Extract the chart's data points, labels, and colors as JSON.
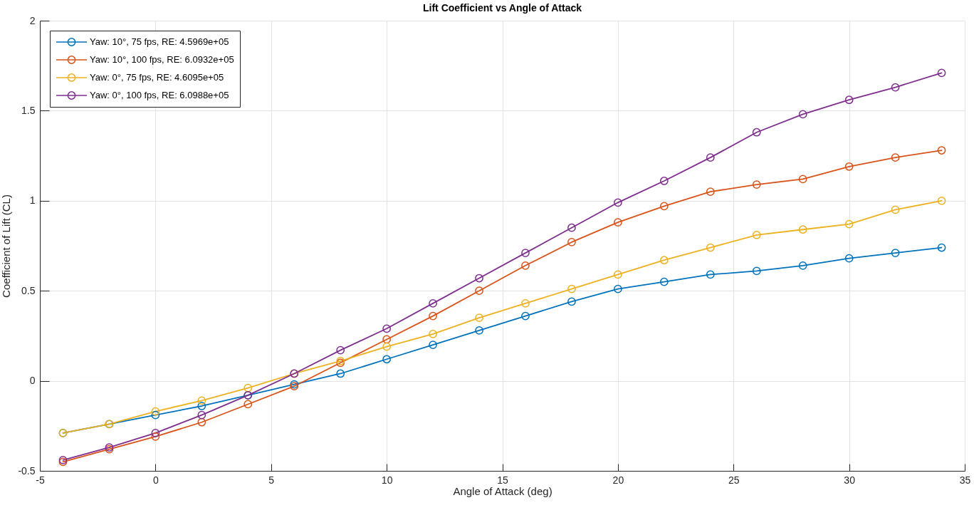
{
  "chart_data": {
    "type": "line",
    "title": "Lift Coefficient vs Angle of Attack",
    "xlabel": "Angle of Attack (deg)",
    "ylabel": "Coefficient of Lift (CL)",
    "x": [
      -4,
      -2,
      0,
      2,
      4,
      6,
      8,
      10,
      12,
      14,
      16,
      18,
      20,
      22,
      24,
      26,
      28,
      30,
      32,
      34
    ],
    "series": [
      {
        "name": "Yaw: 10°, 75 fps, RE: 4.5969e+05",
        "color": "#0072bd",
        "values": [
          -0.29,
          -0.24,
          -0.19,
          -0.14,
          -0.08,
          -0.02,
          0.04,
          0.12,
          0.2,
          0.28,
          0.36,
          0.44,
          0.51,
          0.55,
          0.59,
          0.61,
          0.64,
          0.68,
          0.71,
          0.74
        ]
      },
      {
        "name": "Yaw: 10°, 100 fps, RE: 6.0932e+05",
        "color": "#d95319",
        "values": [
          -0.45,
          -0.38,
          -0.31,
          -0.23,
          -0.13,
          -0.03,
          0.1,
          0.23,
          0.36,
          0.5,
          0.64,
          0.77,
          0.88,
          0.97,
          1.05,
          1.09,
          1.12,
          1.19,
          1.24,
          1.28
        ]
      },
      {
        "name": "Yaw: 0°, 75 fps, RE: 4.6095e+05",
        "color": "#edb120",
        "values": [
          -0.29,
          -0.24,
          -0.17,
          -0.11,
          -0.04,
          0.04,
          0.11,
          0.19,
          0.26,
          0.35,
          0.43,
          0.51,
          0.59,
          0.67,
          0.74,
          0.81,
          0.84,
          0.87,
          0.95,
          1.0
        ]
      },
      {
        "name": "Yaw: 0°, 100 fps, RE: 6.0988e+05",
        "color": "#7e2f8e",
        "values": [
          -0.44,
          -0.37,
          -0.29,
          -0.19,
          -0.08,
          0.04,
          0.17,
          0.29,
          0.43,
          0.57,
          0.71,
          0.85,
          0.99,
          1.11,
          1.24,
          1.38,
          1.48,
          1.56,
          1.63,
          1.71
        ]
      }
    ],
    "xlim": [
      -5,
      35
    ],
    "ylim": [
      -0.5,
      2
    ],
    "xticks": [
      -5,
      0,
      5,
      10,
      15,
      20,
      25,
      30,
      35
    ],
    "yticks": [
      -0.5,
      0,
      0.5,
      1,
      1.5,
      2
    ],
    "grid": true,
    "legend": "top left",
    "marker": "circle",
    "line_style": "solid"
  }
}
